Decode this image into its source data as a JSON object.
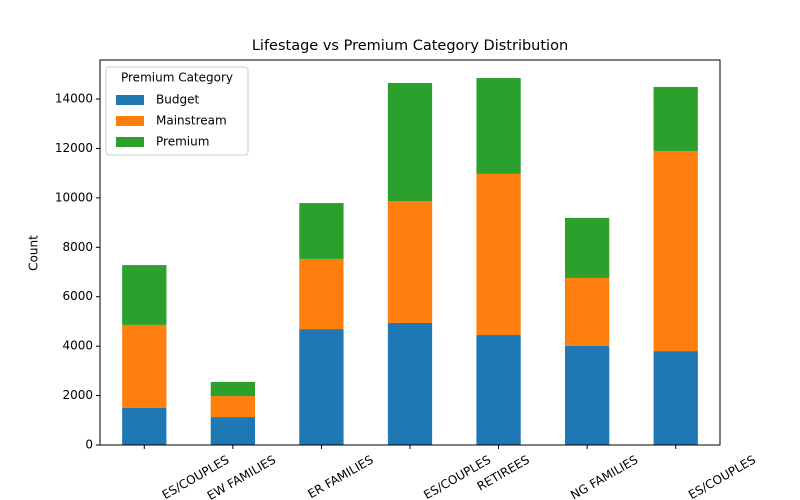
{
  "chart_data": {
    "type": "stacked_bar",
    "title": "Lifestage vs Premium Category Distribution",
    "y_label": "Count",
    "legend_title": "Premium Category",
    "legend_position": "upper left",
    "categories": [
      "ES/COUPLES",
      "EW FAMILIES",
      "ER FAMILIES",
      "ES/COUPLES",
      "RETIREES",
      "NG FAMILIES",
      "ES/COUPLES"
    ],
    "series": [
      {
        "name": "Budget",
        "color": "#1f77b4",
        "values": [
          1500,
          1130,
          4690,
          4940,
          4450,
          4010,
          3800
        ]
      },
      {
        "name": "Mainstream",
        "color": "#ff7f0e",
        "values": [
          3360,
          850,
          2840,
          4930,
          6520,
          2750,
          8100
        ]
      },
      {
        "name": "Premium",
        "color": "#2ca02c",
        "values": [
          2420,
          570,
          2260,
          4780,
          3880,
          2430,
          2590
        ]
      }
    ],
    "ylim": [
      0,
      15580
    ],
    "yticks": [
      0,
      2000,
      4000,
      6000,
      8000,
      10000,
      12000,
      14000
    ]
  }
}
